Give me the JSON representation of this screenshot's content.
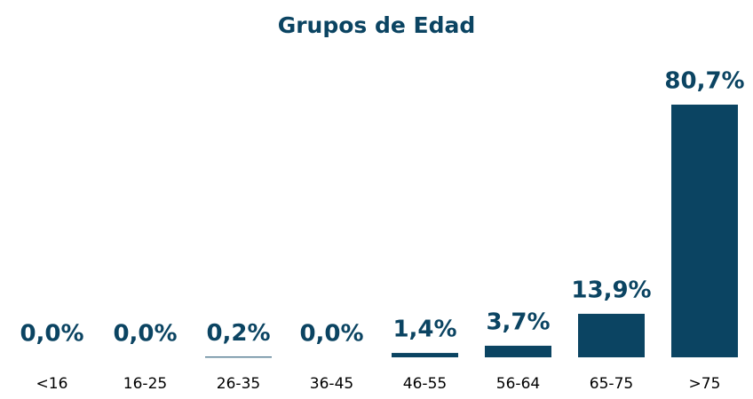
{
  "chart_data": {
    "type": "bar",
    "title": "Grupos de Edad",
    "categories": [
      "<16",
      "16-25",
      "26-35",
      "36-45",
      "46-55",
      "56-64",
      "65-75",
      ">75"
    ],
    "values": [
      0.0,
      0.0,
      0.2,
      0.0,
      1.4,
      3.7,
      13.9,
      80.7
    ],
    "value_labels": [
      "0,0%",
      "0,0%",
      "0,2%",
      "0,0%",
      "1,4%",
      "3,7%",
      "13,9%",
      "80,7%"
    ],
    "color": "#0b4462"
  }
}
